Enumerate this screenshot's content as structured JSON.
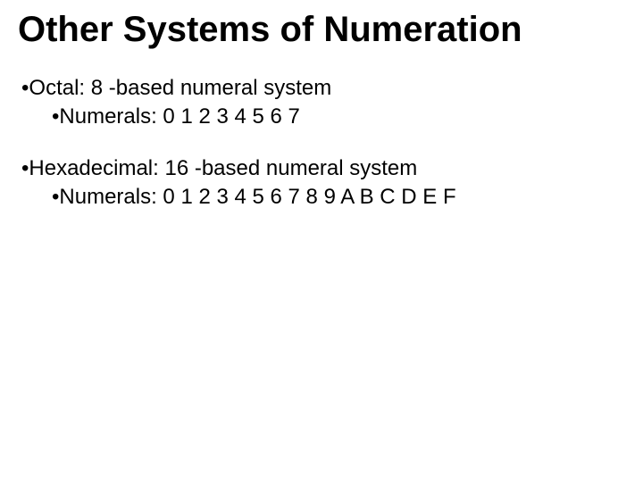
{
  "slide": {
    "title": "Other Systems of Numeration",
    "title_fontsize": 40,
    "title_fontweight": 700,
    "title_color": "#000000",
    "body_fontsize": 24,
    "body_color": "#000000",
    "background_color": "#ffffff",
    "bullet_char": "•",
    "groups": [
      {
        "l1": "Octal: 8 -based numeral system",
        "l2": "Numerals: 0 1 2 3 4 5 6 7"
      },
      {
        "l1": "Hexadecimal: 16 -based numeral system",
        "l2": "Numerals: 0 1 2 3 4 5 6 7 8 9 A B C D E F"
      }
    ]
  }
}
